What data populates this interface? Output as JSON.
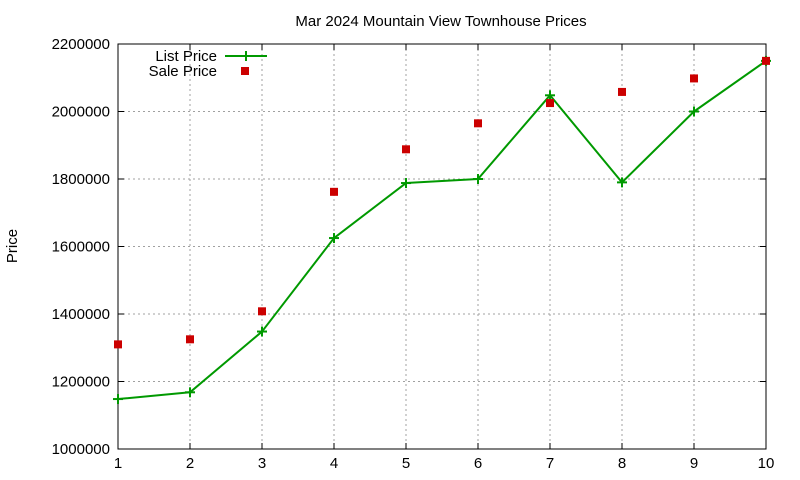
{
  "chart_data": {
    "type": "line",
    "title": "Mar 2024 Mountain View Townhouse Prices",
    "xlabel": "",
    "ylabel": "Price",
    "xlim": [
      1,
      10
    ],
    "ylim": [
      1000000,
      2200000
    ],
    "x_ticks": [
      1,
      2,
      3,
      4,
      5,
      6,
      7,
      8,
      9,
      10
    ],
    "y_ticks": [
      1000000,
      1200000,
      1400000,
      1600000,
      1800000,
      2000000,
      2200000
    ],
    "grid": true,
    "legend_position": "top-left",
    "series": [
      {
        "name": "List Price",
        "style": "line-with-plus-markers",
        "color": "#009900",
        "x": [
          1,
          2,
          3,
          4,
          5,
          6,
          7,
          8,
          9,
          10
        ],
        "y": [
          1148000,
          1168000,
          1348000,
          1625000,
          1788000,
          1800000,
          2048000,
          1790000,
          2000000,
          2150000
        ]
      },
      {
        "name": "Sale Price",
        "style": "square-markers",
        "color": "#cc0000",
        "x": [
          1,
          2,
          3,
          4,
          5,
          6,
          7,
          8,
          9,
          10
        ],
        "y": [
          1310000,
          1325000,
          1408000,
          1762000,
          1888000,
          1965000,
          2025000,
          2058000,
          2098000,
          2150000
        ]
      }
    ]
  }
}
